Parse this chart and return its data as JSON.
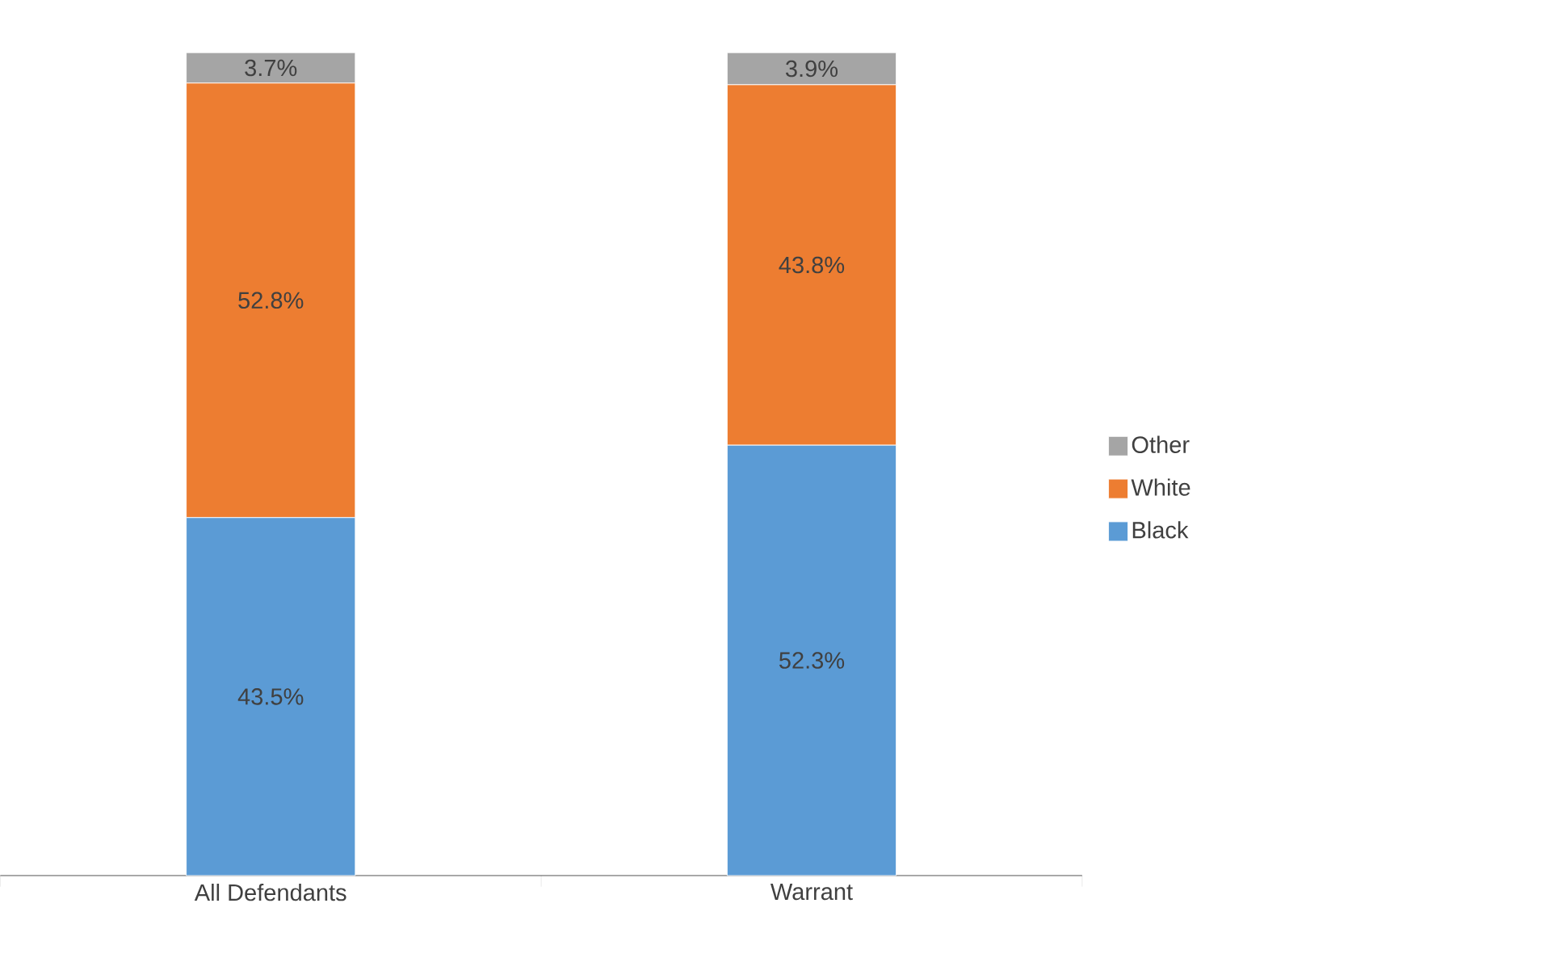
{
  "chart_data": {
    "type": "bar",
    "stacked": true,
    "legend": "right",
    "categories": [
      "All Defendants",
      "Warrant"
    ],
    "series": [
      {
        "name": "Black",
        "color": "#5b9bd5",
        "values": [
          43.5,
          52.3
        ],
        "value_labels": [
          "43.5%",
          "52.3%"
        ]
      },
      {
        "name": "White",
        "color": "#ed7d31",
        "values": [
          52.8,
          43.8
        ],
        "value_labels": [
          "52.8%",
          "43.8%"
        ]
      },
      {
        "name": "Other",
        "color": "#a5a5a5",
        "values": [
          3.7,
          3.9
        ],
        "value_labels": [
          "3.7%",
          "3.9%"
        ]
      }
    ]
  }
}
